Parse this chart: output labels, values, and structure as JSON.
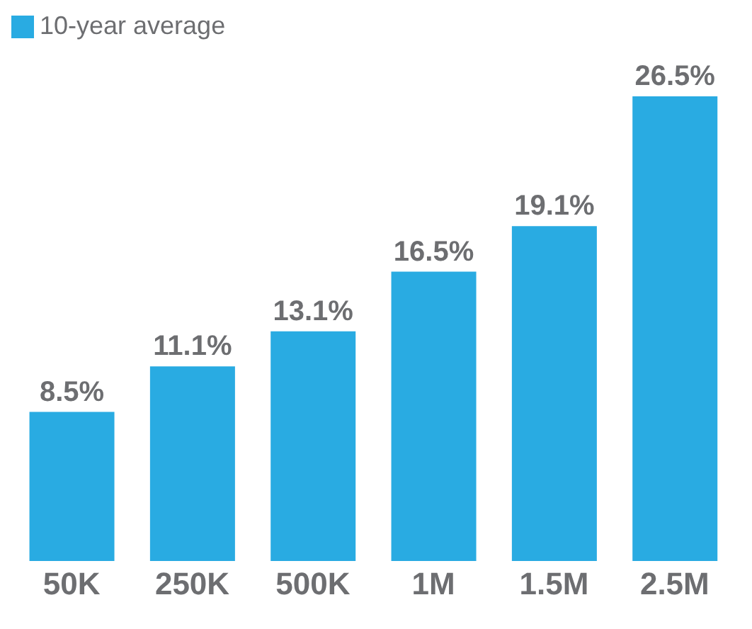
{
  "chart_data": {
    "type": "bar",
    "categories": [
      "50K",
      "250K",
      "500K",
      "1M",
      "1.5M",
      "2.5M"
    ],
    "series": [
      {
        "name": "10-year average",
        "color": "#29abe2",
        "values": [
          8.5,
          11.1,
          13.1,
          16.5,
          19.1,
          26.5
        ],
        "value_labels": [
          "8.5%",
          "11.1%",
          "13.1%",
          "16.5%",
          "19.1%",
          "26.5%"
        ]
      }
    ],
    "legend": "top left",
    "grid": false
  }
}
